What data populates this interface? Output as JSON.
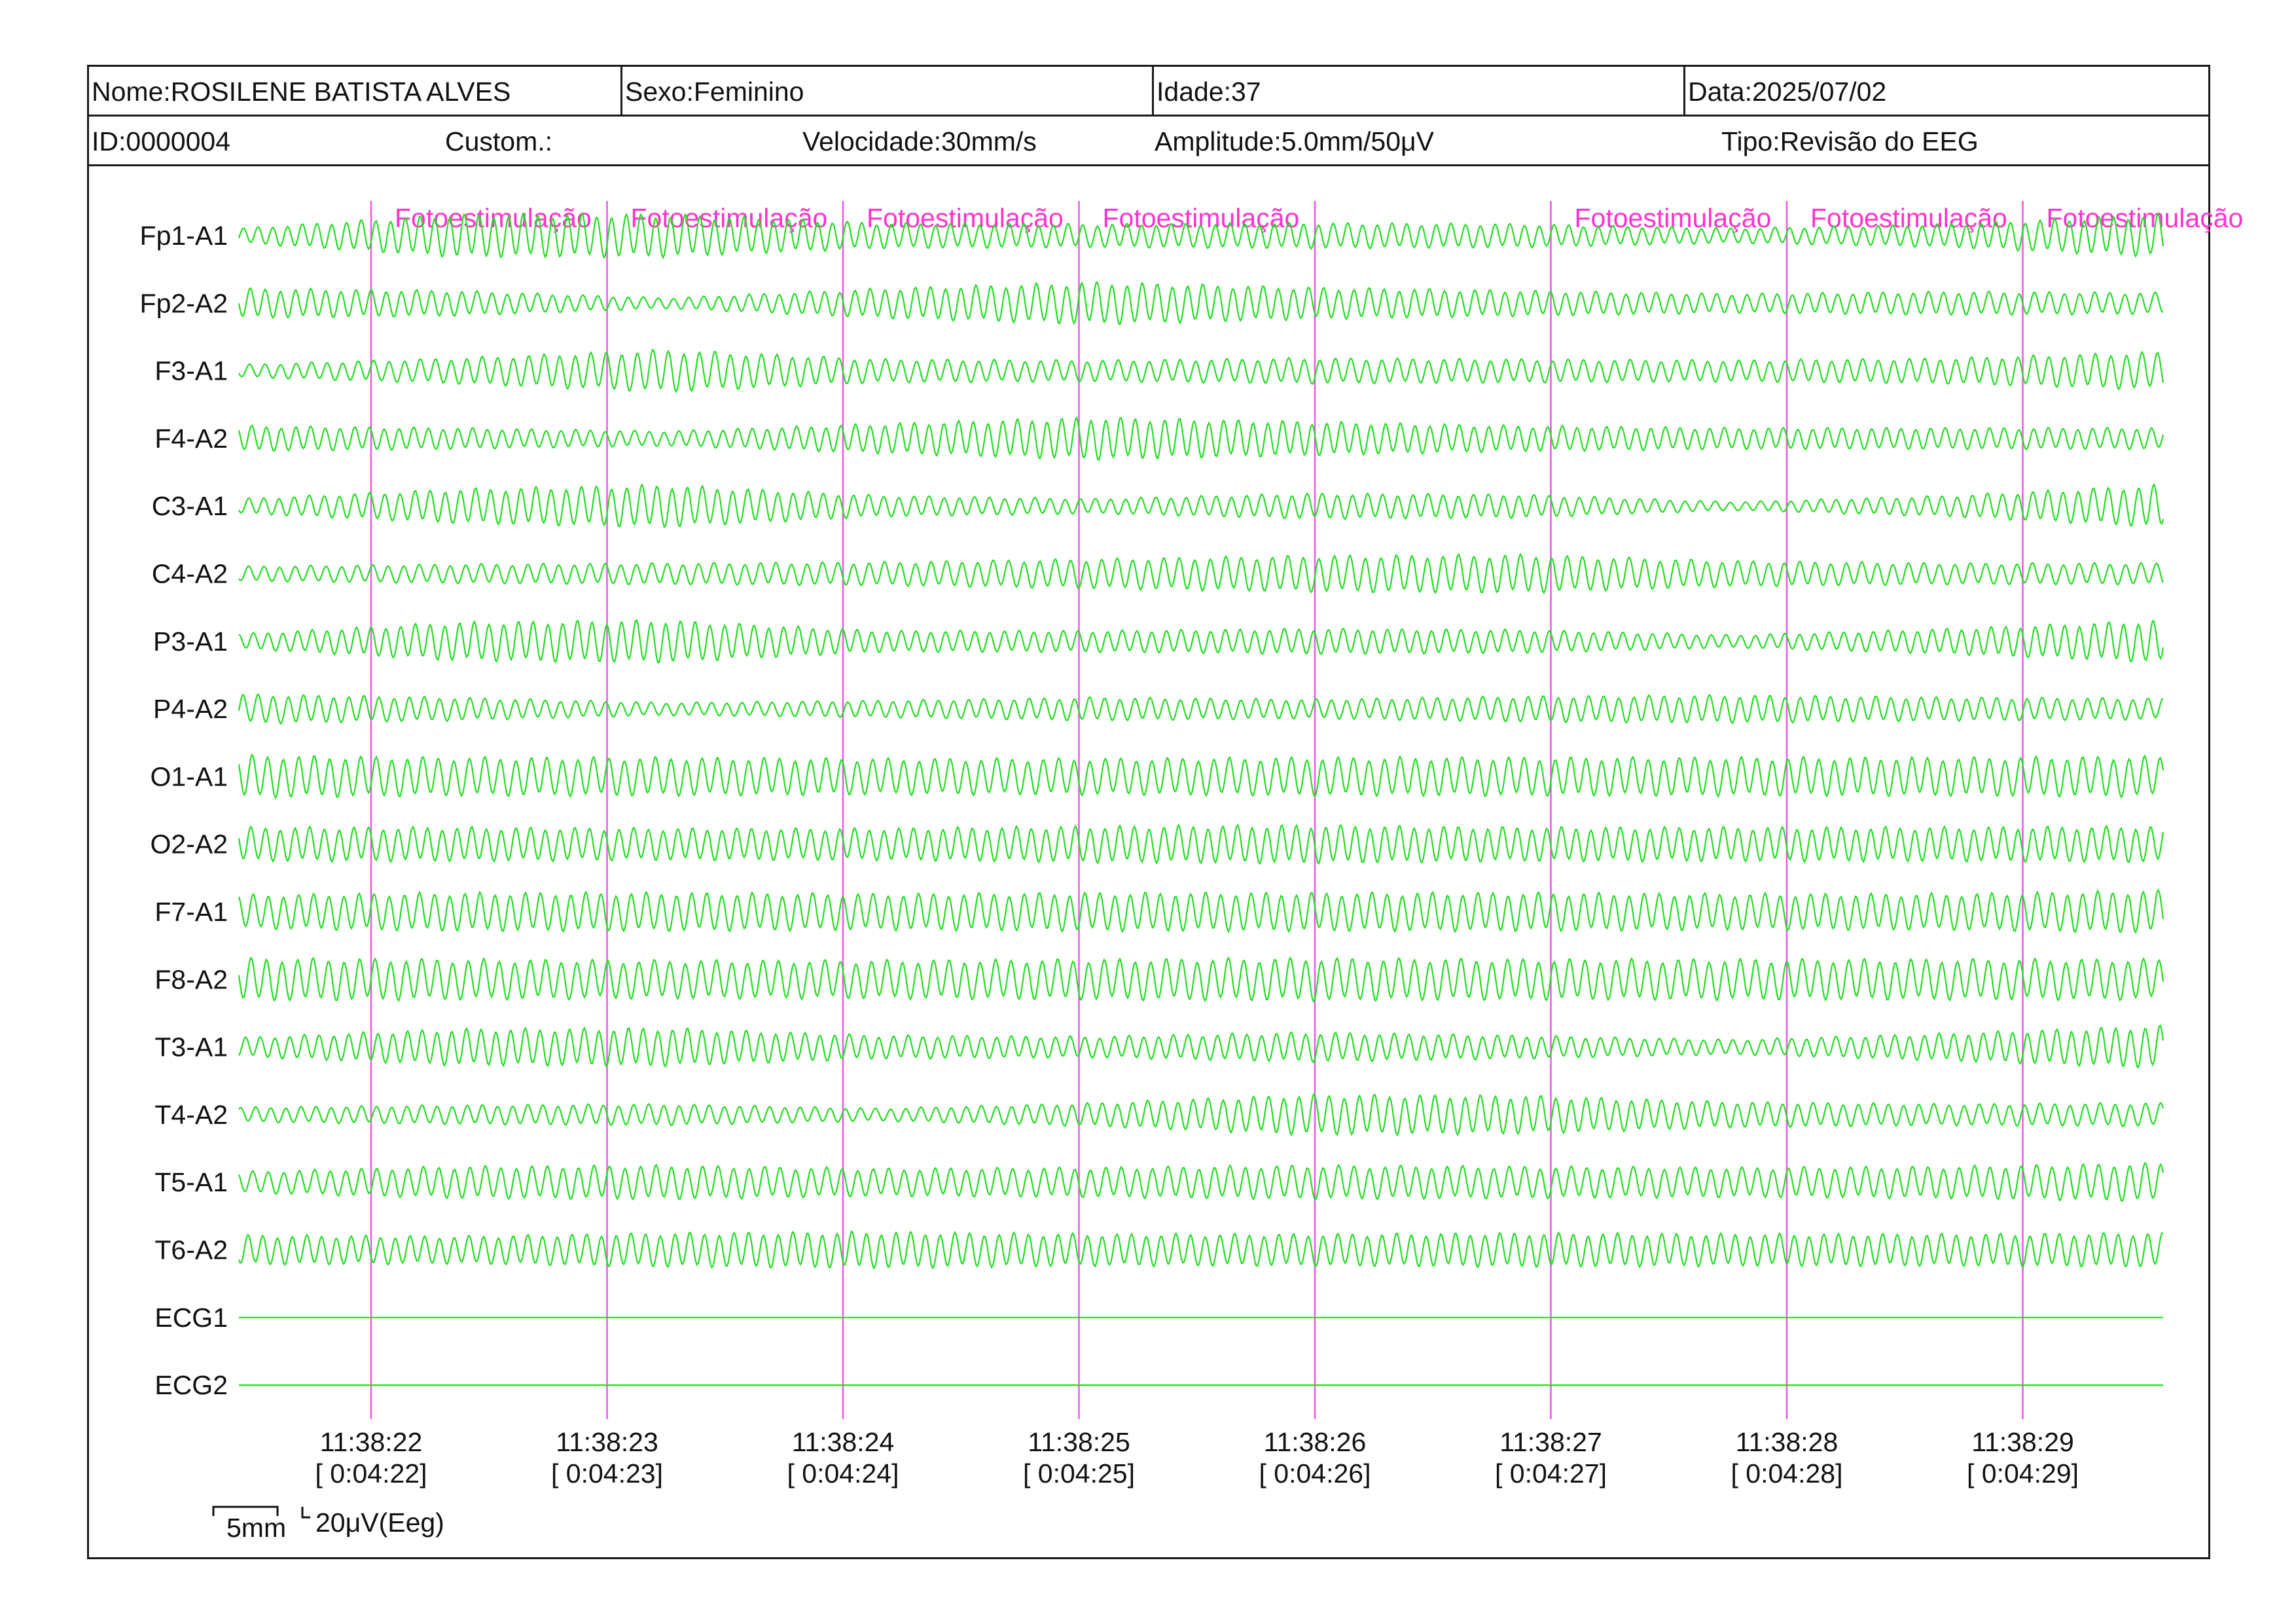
{
  "header": {
    "name": "Nome:ROSILENE BATISTA ALVES",
    "sex": "Sexo:Feminino",
    "age": "Idade:37",
    "date": "Data:2025/07/02",
    "id": "ID:0000004",
    "custom": "Custom.:",
    "speed": "Velocidade:30mm/s",
    "amplitude": "Amplitude:5.0mm/50μV",
    "type": "Tipo:Revisão do EEG"
  },
  "channels": [
    {
      "label": "Fp1-A1",
      "kind": "eeg",
      "amplitude": [
        0.35,
        1.0,
        1.0,
        0.6,
        0.55,
        0.6,
        0.55,
        0.35,
        0.55,
        1.0
      ]
    },
    {
      "label": "Fp2-A2",
      "kind": "eeg",
      "amplitude": [
        0.7,
        0.6,
        0.25,
        0.7,
        1.0,
        0.75,
        0.6,
        0.45,
        0.55,
        0.5
      ]
    },
    {
      "label": "F3-A1",
      "kind": "eeg",
      "amplitude": [
        0.3,
        0.6,
        1.0,
        0.55,
        0.5,
        0.6,
        0.55,
        0.5,
        0.6,
        0.9
      ]
    },
    {
      "label": "F4-A2",
      "kind": "eeg",
      "amplitude": [
        0.6,
        0.5,
        0.35,
        0.7,
        1.0,
        0.8,
        0.6,
        0.5,
        0.5,
        0.5
      ]
    },
    {
      "label": "C3-A1",
      "kind": "eeg",
      "amplitude": [
        0.35,
        0.8,
        1.0,
        0.5,
        0.35,
        0.6,
        0.55,
        0.2,
        0.5,
        1.0
      ]
    },
    {
      "label": "C4-A2",
      "kind": "eeg",
      "amplitude": [
        0.35,
        0.45,
        0.5,
        0.55,
        0.7,
        0.85,
        0.9,
        0.6,
        0.5,
        0.5
      ]
    },
    {
      "label": "P3-A1",
      "kind": "eeg",
      "amplitude": [
        0.35,
        0.9,
        1.0,
        0.5,
        0.5,
        0.6,
        0.55,
        0.3,
        0.6,
        1.0
      ]
    },
    {
      "label": "P4-A2",
      "kind": "eeg",
      "amplitude": [
        0.7,
        0.55,
        0.3,
        0.4,
        0.55,
        0.45,
        0.6,
        0.65,
        0.55,
        0.5
      ]
    },
    {
      "label": "O1-A1",
      "kind": "eeg",
      "amplitude": [
        1.0,
        0.9,
        0.9,
        0.85,
        0.85,
        0.9,
        0.9,
        0.9,
        0.9,
        0.95
      ]
    },
    {
      "label": "O2-A2",
      "kind": "eeg",
      "amplitude": [
        0.8,
        0.8,
        0.75,
        0.75,
        0.85,
        0.9,
        0.8,
        0.8,
        0.8,
        0.85
      ]
    },
    {
      "label": "F7-A1",
      "kind": "eeg",
      "amplitude": [
        0.8,
        0.9,
        0.9,
        0.85,
        0.9,
        0.9,
        0.9,
        0.85,
        0.85,
        1.0
      ]
    },
    {
      "label": "F8-A2",
      "kind": "eeg",
      "amplitude": [
        1.0,
        0.95,
        0.9,
        0.9,
        0.95,
        1.0,
        0.95,
        0.95,
        0.95,
        0.95
      ]
    },
    {
      "label": "T3-A1",
      "kind": "eeg",
      "amplitude": [
        0.45,
        0.85,
        0.9,
        0.55,
        0.5,
        0.7,
        0.55,
        0.35,
        0.65,
        1.0
      ]
    },
    {
      "label": "T4-A2",
      "kind": "eeg",
      "amplitude": [
        0.35,
        0.45,
        0.5,
        0.3,
        0.55,
        0.95,
        0.9,
        0.6,
        0.5,
        0.55
      ]
    },
    {
      "label": "T5-A1",
      "kind": "eeg",
      "amplitude": [
        0.5,
        0.75,
        0.8,
        0.65,
        0.7,
        0.8,
        0.75,
        0.7,
        0.75,
        0.9
      ]
    },
    {
      "label": "T6-A2",
      "kind": "eeg",
      "amplitude": [
        0.7,
        0.65,
        0.8,
        0.85,
        0.75,
        0.75,
        0.8,
        0.75,
        0.75,
        0.8
      ]
    },
    {
      "label": "ECG1",
      "kind": "flat"
    },
    {
      "label": "ECG2",
      "kind": "flat"
    }
  ],
  "markers": [
    {
      "label": "Fotoestimulação",
      "time": "11:38:22",
      "elapsed": "[ 0:04:22]"
    },
    {
      "label": "Fotoestimulação",
      "time": "11:38:23",
      "elapsed": "[ 0:04:23]"
    },
    {
      "label": "Fotoestimulação",
      "time": "11:38:24",
      "elapsed": "[ 0:04:24]"
    },
    {
      "label": "Fotoestimulação",
      "time": "11:38:25",
      "elapsed": "[ 0:04:25]"
    },
    {
      "label": "",
      "time": "11:38:26",
      "elapsed": "[ 0:04:26]"
    },
    {
      "label": "Fotoestimulação",
      "time": "11:38:27",
      "elapsed": "[ 0:04:27]"
    },
    {
      "label": "Fotoestimulação",
      "time": "11:38:28",
      "elapsed": "[ 0:04:28]"
    },
    {
      "label": "Fotoestimulação",
      "time": "11:38:29",
      "elapsed": "[ 0:04:29]"
    }
  ],
  "scale": {
    "time_label": "5mm",
    "amp_label": "20μV(Eeg)"
  },
  "colors": {
    "trace": "#22dd22",
    "marker": "#ee55ee",
    "marker_label": "#ff33cc",
    "border": "#1a1a1a"
  }
}
